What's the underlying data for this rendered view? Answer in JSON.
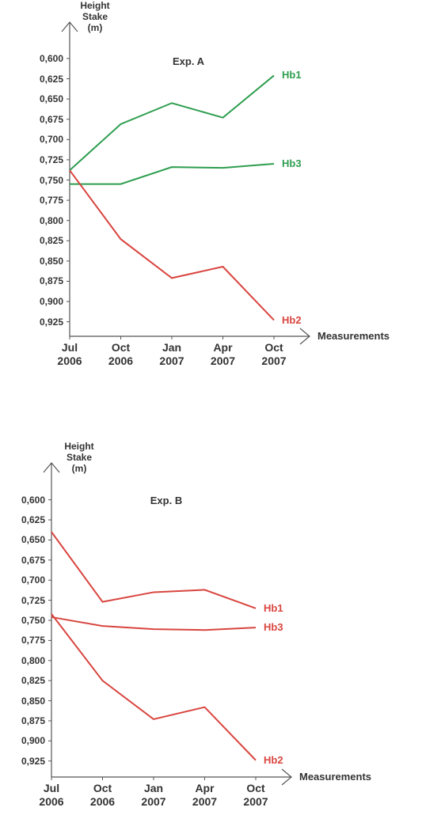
{
  "chart_data": [
    {
      "type": "line",
      "title": "Exp. A",
      "y_label": "Height\nStake\n(m)",
      "x_label": "Measurements",
      "categories": [
        "Jul\n2006",
        "Oct\n2006",
        "Jan\n2007",
        "Apr\n2007",
        "Oct\n2007"
      ],
      "series": [
        {
          "name": "Hb1",
          "color": "#2e9e4f",
          "values": [
            0.738,
            0.681,
            0.655,
            0.673,
            0.621
          ]
        },
        {
          "name": "Hb3",
          "color": "#2e9e4f",
          "values": [
            0.755,
            0.755,
            0.734,
            0.735,
            0.73
          ]
        },
        {
          "name": "Hb2",
          "color": "#d9453f",
          "values": [
            0.738,
            0.823,
            0.871,
            0.857,
            0.923
          ]
        }
      ],
      "ylim": [
        0.94,
        0.56
      ],
      "yticks": [
        {
          "value": 0.6,
          "label": "0,600"
        },
        {
          "value": 0.625,
          "label": "0,625"
        },
        {
          "value": 0.65,
          "label": "0,650"
        },
        {
          "value": 0.675,
          "label": "0,675"
        },
        {
          "value": 0.7,
          "label": "0,700"
        },
        {
          "value": 0.725,
          "label": "0,725"
        },
        {
          "value": 0.75,
          "label": "0,750"
        },
        {
          "value": 0.775,
          "label": "0,775"
        },
        {
          "value": 0.8,
          "label": "0,800"
        },
        {
          "value": 0.825,
          "label": "0,825"
        },
        {
          "value": 0.85,
          "label": "0,850"
        },
        {
          "value": 0.875,
          "label": "0,875"
        },
        {
          "value": 0.9,
          "label": "0,900"
        },
        {
          "value": 0.925,
          "label": "0,925"
        }
      ]
    },
    {
      "type": "line",
      "title": "Exp. B",
      "y_label": "Height\nStake\n(m)",
      "x_label": "Measurements",
      "categories": [
        "Jul\n2006",
        "Oct\n2006",
        "Jan\n2007",
        "Apr\n2007",
        "Oct\n2007"
      ],
      "series": [
        {
          "name": "Hb1",
          "color": "#d9453f",
          "values": [
            0.64,
            0.727,
            0.715,
            0.712,
            0.735
          ]
        },
        {
          "name": "Hb3",
          "color": "#d9453f",
          "values": [
            0.746,
            0.757,
            0.761,
            0.762,
            0.759
          ]
        },
        {
          "name": "Hb2",
          "color": "#d9453f",
          "values": [
            0.742,
            0.825,
            0.873,
            0.858,
            0.924
          ]
        }
      ],
      "ylim": [
        0.94,
        0.56
      ],
      "yticks": [
        {
          "value": 0.6,
          "label": "0,600"
        },
        {
          "value": 0.625,
          "label": "0,625"
        },
        {
          "value": 0.65,
          "label": "0,650"
        },
        {
          "value": 0.675,
          "label": "0,675"
        },
        {
          "value": 0.7,
          "label": "0,700"
        },
        {
          "value": 0.725,
          "label": "0,725"
        },
        {
          "value": 0.75,
          "label": "0,750"
        },
        {
          "value": 0.775,
          "label": "0,775"
        },
        {
          "value": 0.8,
          "label": "0,800"
        },
        {
          "value": 0.825,
          "label": "0,825"
        },
        {
          "value": 0.85,
          "label": "0,850"
        },
        {
          "value": 0.875,
          "label": "0,875"
        },
        {
          "value": 0.9,
          "label": "0,900"
        },
        {
          "value": 0.925,
          "label": "0,925"
        }
      ]
    }
  ]
}
